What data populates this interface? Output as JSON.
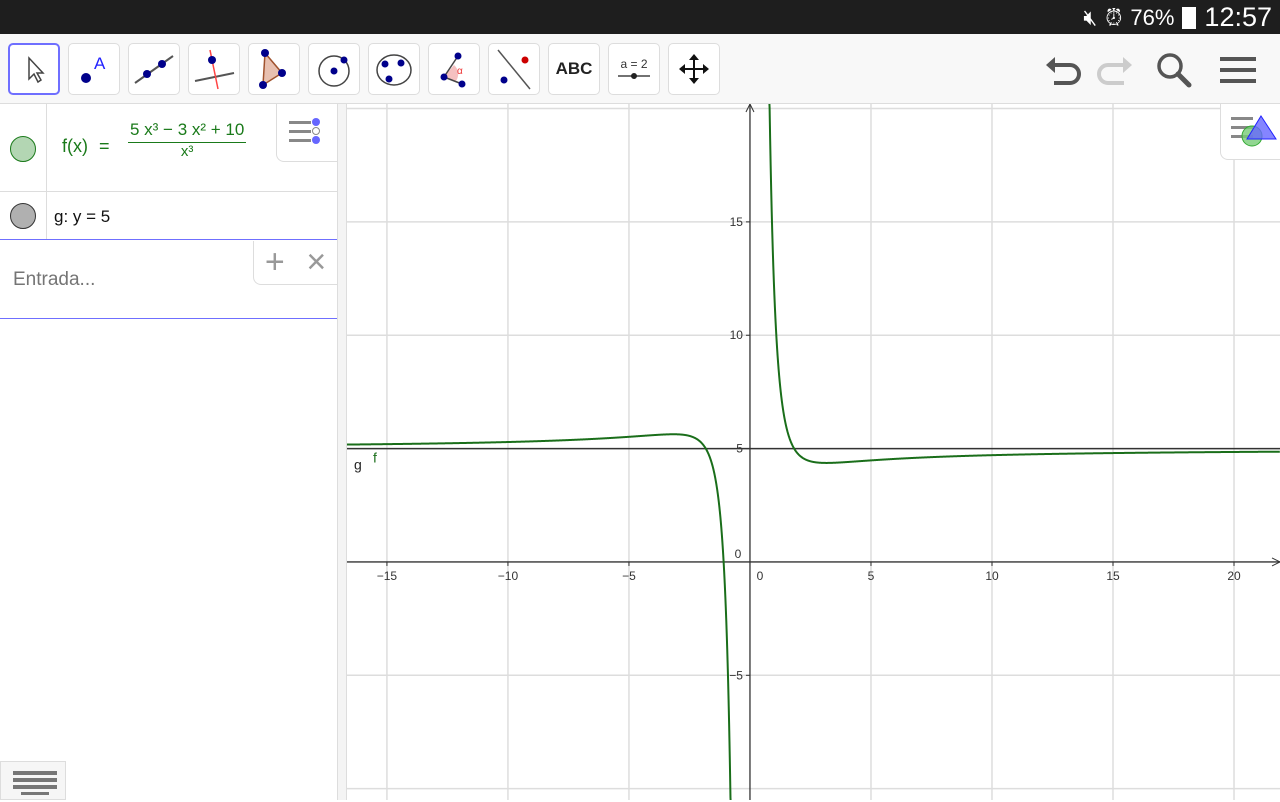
{
  "status": {
    "battery": "76%",
    "time": "12:57",
    "icons": [
      "mute-icon",
      "alarm-icon",
      "battery-icon"
    ]
  },
  "toolbar": {
    "tools": [
      {
        "name": "move-tool",
        "icon": "cursor-icon",
        "selected": true
      },
      {
        "name": "point-tool",
        "icon": "point-icon",
        "label": "A"
      },
      {
        "name": "line-tool",
        "icon": "line-icon"
      },
      {
        "name": "perpendicular-tool",
        "icon": "perpendicular-line-icon"
      },
      {
        "name": "polygon-tool",
        "icon": "polygon-icon"
      },
      {
        "name": "circle-tool",
        "icon": "circle-center-point-icon"
      },
      {
        "name": "conic-tool",
        "icon": "circle-three-points-icon"
      },
      {
        "name": "angle-tool",
        "icon": "angle-icon",
        "label": "α"
      },
      {
        "name": "reflect-tool",
        "icon": "reflect-line-icon"
      },
      {
        "name": "text-tool",
        "icon": "text-icon",
        "label": "ABC"
      },
      {
        "name": "slider-tool",
        "icon": "slider-icon",
        "label": "a = 2"
      },
      {
        "name": "move-view-tool",
        "icon": "move-graphics-icon"
      }
    ],
    "right": [
      "undo-icon",
      "redo-icon",
      "search-icon",
      "menu-icon"
    ]
  },
  "algebra": {
    "f": {
      "lhs": "f(x)",
      "eq": "=",
      "num": "5 x³ − 3 x² + 10",
      "den": "x³",
      "color": "#1a7a1a",
      "dot": "#b3d6b3"
    },
    "g": {
      "text": "g: y = 5",
      "dot": "#b0b0b0"
    },
    "input_placeholder": "Entrada...",
    "add_label": "+",
    "close_label": "×"
  },
  "chart_data": {
    "type": "line",
    "functions": [
      {
        "name": "f",
        "expr": "(5x^3-3x^2+10)/x^3",
        "color": "#1a6e1a"
      },
      {
        "name": "g",
        "expr": "y=5",
        "color": "#333333"
      }
    ],
    "xlim": [
      -16.65,
      21.9
    ],
    "ylim": [
      -10.5,
      20.2
    ],
    "xticks": [
      -15,
      -10,
      -5,
      0,
      5,
      10,
      15,
      20
    ],
    "yticks": [
      -5,
      0,
      5,
      10,
      15
    ],
    "grid": true,
    "labels": {
      "g": "g",
      "f": "f"
    }
  }
}
